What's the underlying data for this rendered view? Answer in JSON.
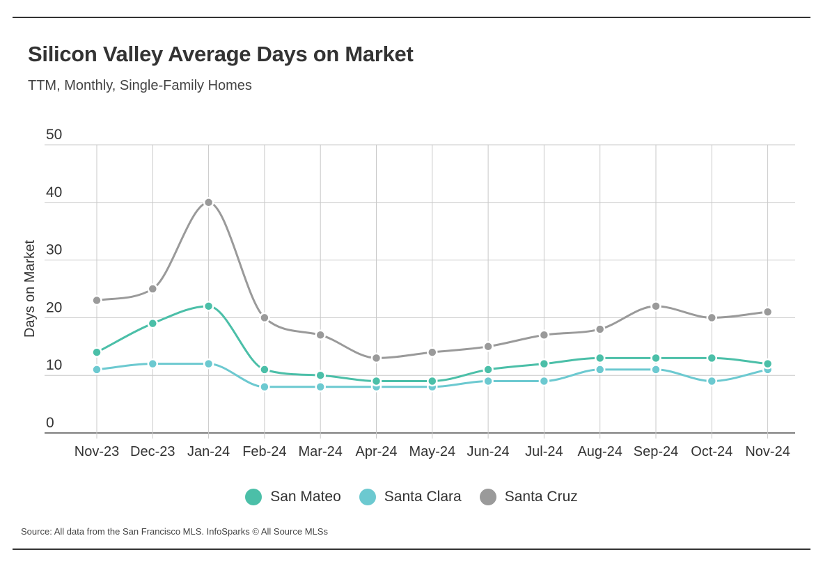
{
  "title": "Silicon Valley Average Days on Market",
  "subtitle": "TTM, Monthly, Single-Family Homes",
  "source": "Source:  All data from the San Francisco MLS. InfoSparks © All Source MLSs",
  "chart_data": {
    "type": "line",
    "title": "Silicon Valley Average Days on Market",
    "subtitle": "TTM, Monthly, Single-Family Homes",
    "xlabel": "",
    "ylabel": "Days on Market",
    "ylim": [
      0,
      50
    ],
    "yticks": [
      0,
      10,
      20,
      30,
      40,
      50
    ],
    "grid": true,
    "legend_position": "bottom",
    "categories": [
      "Nov-23",
      "Dec-23",
      "Jan-24",
      "Feb-24",
      "Mar-24",
      "Apr-24",
      "May-24",
      "Jun-24",
      "Jul-24",
      "Aug-24",
      "Sep-24",
      "Oct-24",
      "Nov-24"
    ],
    "series": [
      {
        "name": "San Mateo",
        "color": "#4bbfa8",
        "values": [
          14,
          19,
          22,
          11,
          10,
          9,
          9,
          11,
          12,
          13,
          13,
          13,
          12
        ]
      },
      {
        "name": "Santa Clara",
        "color": "#6cc9d0",
        "values": [
          11,
          12,
          12,
          8,
          8,
          8,
          8,
          9,
          9,
          11,
          11,
          9,
          11
        ]
      },
      {
        "name": "Santa Cruz",
        "color": "#9a9a9a",
        "values": [
          23,
          25,
          40,
          20,
          17,
          13,
          14,
          15,
          17,
          18,
          22,
          20,
          21
        ]
      }
    ]
  }
}
